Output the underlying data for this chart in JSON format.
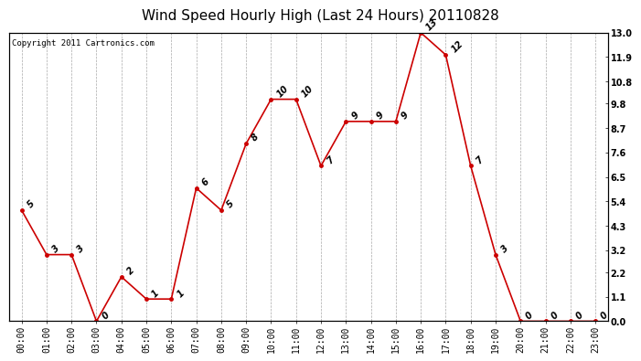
{
  "title": "Wind Speed Hourly High (Last 24 Hours) 20110828",
  "copyright": "Copyright 2011 Cartronics.com",
  "hours": [
    "00:00",
    "01:00",
    "02:00",
    "03:00",
    "04:00",
    "05:00",
    "06:00",
    "07:00",
    "08:00",
    "09:00",
    "10:00",
    "11:00",
    "12:00",
    "13:00",
    "14:00",
    "15:00",
    "16:00",
    "17:00",
    "18:00",
    "19:00",
    "20:00",
    "21:00",
    "22:00",
    "23:00"
  ],
  "values": [
    5,
    3,
    3,
    0,
    2,
    1,
    1,
    6,
    5,
    8,
    10,
    10,
    7,
    9,
    9,
    9,
    13,
    12,
    7,
    3,
    0,
    0,
    0,
    0
  ],
  "ylim": [
    0,
    13.0
  ],
  "yticks_right": [
    0.0,
    1.1,
    2.2,
    3.2,
    4.3,
    5.4,
    6.5,
    7.6,
    8.7,
    9.8,
    10.8,
    11.9,
    13.0
  ],
  "line_color": "#cc0000",
  "marker_color": "#cc0000",
  "bg_color": "#ffffff",
  "grid_color": "#aaaaaa",
  "title_fontsize": 11,
  "label_fontsize": 7,
  "annotation_fontsize": 7,
  "copyright_fontsize": 6.5
}
